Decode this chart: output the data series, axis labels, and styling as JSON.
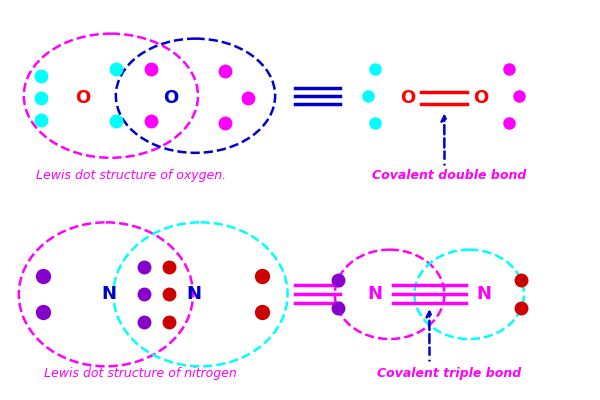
{
  "bg_color": "#ffffff",
  "magenta": "#FF00FF",
  "cyan": "#00FFFF",
  "blue_dark": "#0000CD",
  "red": "#FF0000",
  "purple": "#8800CC",
  "dark_red": "#CC0000",
  "label_oxygen_lewis": "Lewis dot structure of oxygen.",
  "label_oxygen_bond": "Covalent double bond",
  "label_nitrogen_lewis": "Lewis dot structure of nitrogen",
  "label_nitrogen_bond": "Covalent triple bond"
}
